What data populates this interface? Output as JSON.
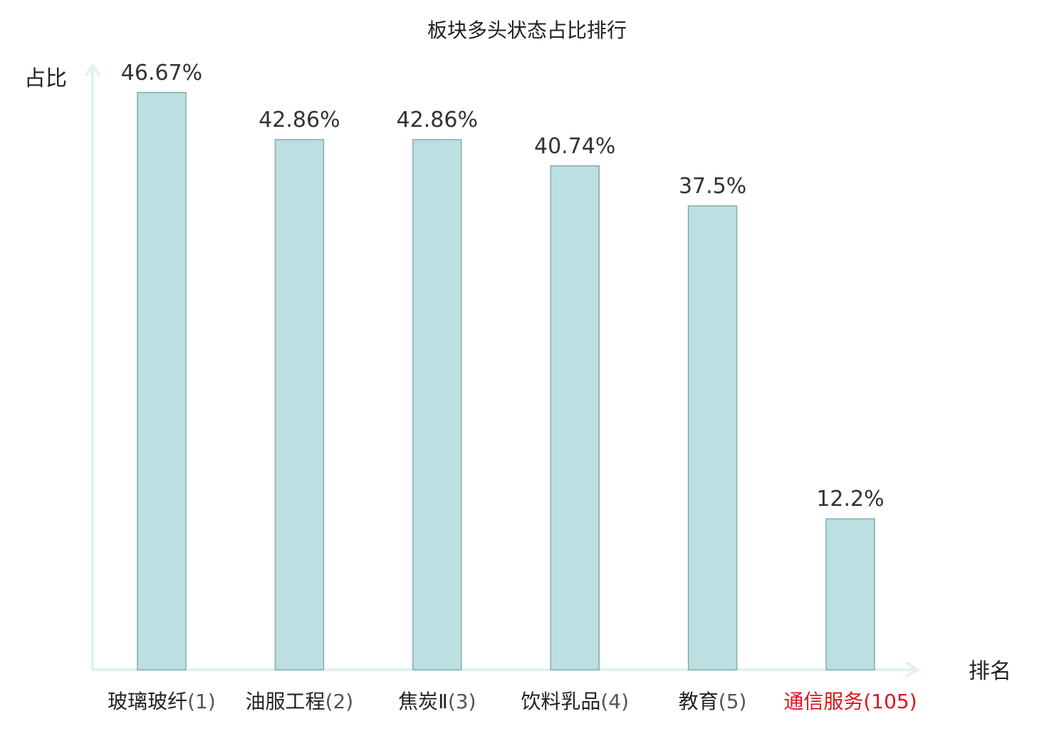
{
  "chart_data": {
    "type": "bar",
    "title": "板块多头状态占比排行",
    "ylabel": "占比",
    "xlabel": "排名",
    "categories": [
      "玻璃玻纤",
      "油服工程",
      "焦炭Ⅱ",
      "饮料乳品",
      "教育",
      "通信服务"
    ],
    "ranks": [
      "(1)",
      "(2)",
      "(3)",
      "(4)",
      "(5)",
      "(105)"
    ],
    "values": [
      46.67,
      42.86,
      42.86,
      40.74,
      37.5,
      12.2
    ],
    "value_labels": [
      "46.67%",
      "42.86%",
      "42.86%",
      "40.74%",
      "37.5%",
      "12.2%"
    ],
    "highlight_index": 5,
    "ylim": [
      0,
      50
    ],
    "grid": false,
    "legend": "none"
  },
  "colors": {
    "bar_fill": "#bce0e2",
    "bar_stroke": "#8aa9aa",
    "axis": "#dff2ef",
    "label_text": "#333333",
    "rank_text": "#555555",
    "highlight": "#e0141a"
  }
}
